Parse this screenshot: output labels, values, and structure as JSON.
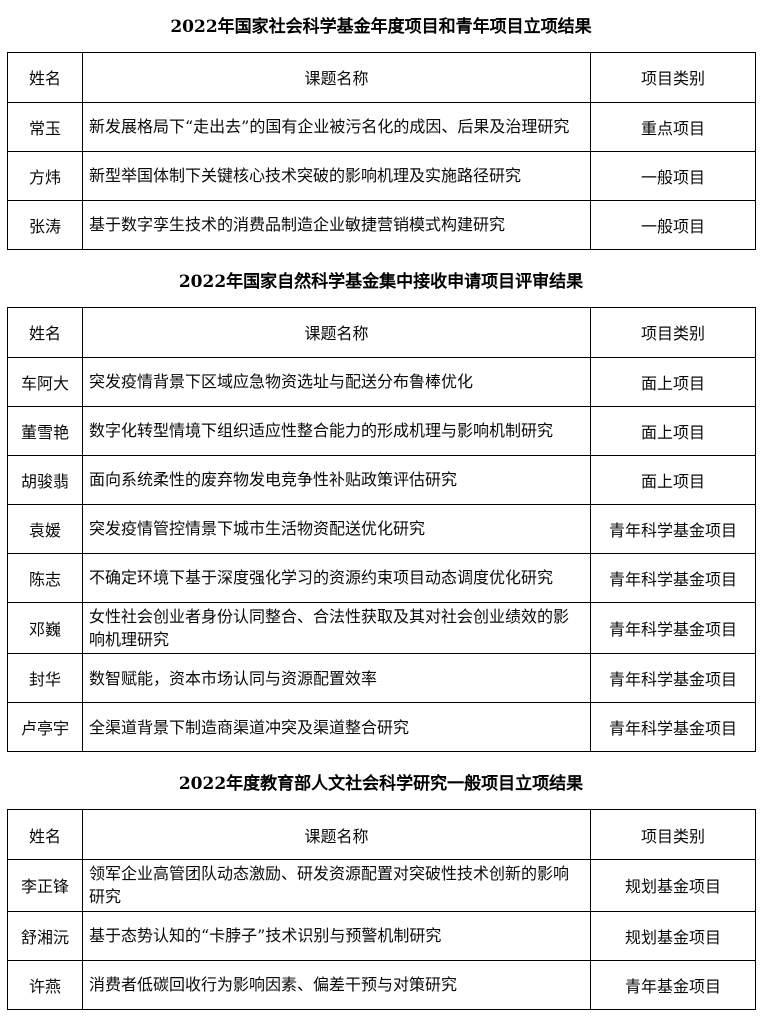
{
  "page": {
    "background_color": "#ffffff",
    "text_color": "#000000",
    "border_color": "#000000"
  },
  "tables": [
    {
      "title": "2022年国家社会科学基金年度项目和青年项目立项结果",
      "headers": [
        "姓名",
        "课题名称",
        "项目类别"
      ],
      "rows": [
        [
          "常玉",
          "新发展格局下“走出去”的国有企业被污名化的成因、后果及治理研究",
          "重点项目"
        ],
        [
          "方炜",
          "新型举国体制下关键核心技术突破的影响机理及实施路径研究",
          "一般项目"
        ],
        [
          "张涛",
          "基于数字孪生技术的消费品制造企业敏捷营销模式构建研究",
          "一般项目"
        ]
      ]
    },
    {
      "title": "2022年国家自然科学基金集中接收申请项目评审结果",
      "headers": [
        "姓名",
        "课题名称",
        "项目类别"
      ],
      "rows": [
        [
          "车阿大",
          "突发疫情背景下区域应急物资选址与配送分布鲁棒优化",
          "面上项目"
        ],
        [
          "董雪艳",
          "数字化转型情境下组织适应性整合能力的形成机理与影响机制研究",
          "面上项目"
        ],
        [
          "胡骏翡",
          "面向系统柔性的废弃物发电竞争性补贴政策评估研究",
          "面上项目"
        ],
        [
          "袁媛",
          "突发疫情管控情景下城市生活物资配送优化研究",
          "青年科学基金项目"
        ],
        [
          "陈志",
          "不确定环境下基于深度强化学习的资源约束项目动态调度优化研究",
          "青年科学基金项目"
        ],
        [
          "邓巍",
          "女性社会创业者身份认同整合、合法性获取及其对社会创业绩效的影响机理研究",
          "青年科学基金项目"
        ],
        [
          "封华",
          "数智赋能，资本市场认同与资源配置效率",
          "青年科学基金项目"
        ],
        [
          "卢亭宇",
          "全渠道背景下制造商渠道冲突及渠道整合研究",
          "青年科学基金项目"
        ]
      ]
    },
    {
      "title": "2022年度教育部人文社会科学研究一般项目立项结果",
      "headers": [
        "姓名",
        "课题名称",
        "项目类别"
      ],
      "rows": [
        [
          "李正锋",
          "领军企业高管团队动态激励、研发资源配置对突破性技术创新的影响研究",
          "规划基金项目"
        ],
        [
          "舒湘沅",
          "基于态势认知的“卡脖子”技术识别与预警机制研究",
          "规划基金项目"
        ],
        [
          "许燕",
          "消费者低碳回收行为影响因素、偏差干预与对策研究",
          "青年基金项目"
        ]
      ]
    }
  ]
}
